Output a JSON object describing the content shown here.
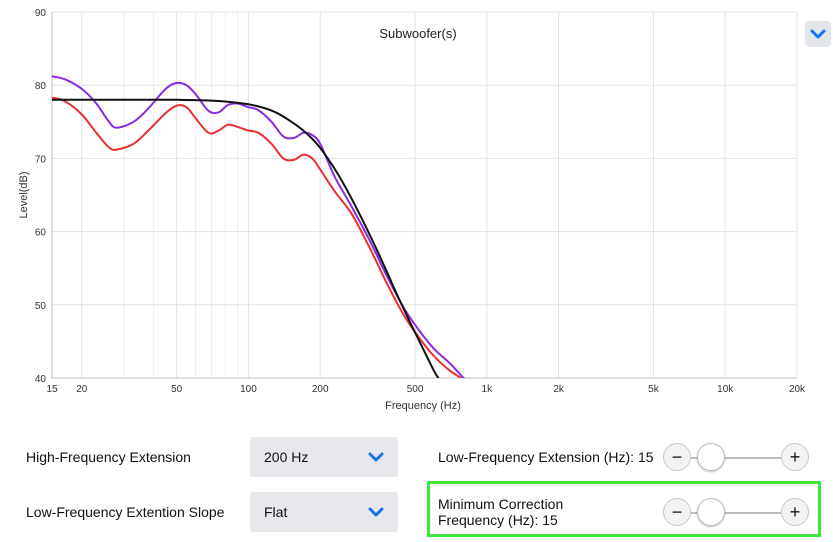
{
  "chart_data": {
    "type": "line",
    "title": "Subwoofer(s)",
    "xlabel": "Frequency (Hz)",
    "ylabel": "Level(dB)",
    "xscale": "log",
    "xlim": [
      15,
      20000
    ],
    "ylim": [
      40,
      90
    ],
    "grid": true,
    "x_ticks": [
      15,
      20,
      50,
      100,
      200,
      500,
      1000,
      2000,
      5000,
      10000,
      20000
    ],
    "x_tick_labels": [
      "15",
      "20",
      "50",
      "100",
      "200",
      "500",
      "1k",
      "2k",
      "5k",
      "10k",
      "20k"
    ],
    "y_ticks": [
      40,
      50,
      60,
      70,
      80,
      90
    ],
    "y_tick_labels": [
      "40",
      "50",
      "60",
      "70",
      "80",
      "90"
    ],
    "series": [
      {
        "color": "#8a2be2",
        "x": [
          15,
          17,
          20,
          23,
          26,
          28,
          33,
          38,
          45,
          50,
          55,
          60,
          68,
          75,
          82,
          90,
          100,
          110,
          125,
          140,
          155,
          170,
          185,
          200,
          230,
          270,
          320,
          380,
          450,
          520,
          600,
          700,
          800,
          850
        ],
        "y": [
          81.2,
          80.8,
          79.5,
          77.5,
          75.0,
          74.2,
          75.0,
          76.8,
          79.5,
          80.3,
          80.0,
          78.8,
          76.5,
          76.3,
          77.3,
          77.5,
          77.0,
          76.6,
          75.0,
          73.0,
          72.8,
          73.5,
          73.2,
          72.0,
          67.5,
          63.5,
          59.0,
          54.0,
          49.5,
          46.5,
          44.0,
          42.0,
          40.0,
          39.5
        ]
      },
      {
        "color": "#e8302e",
        "x": [
          15,
          17,
          20,
          23,
          26,
          28,
          33,
          38,
          45,
          50,
          55,
          60,
          68,
          75,
          82,
          90,
          100,
          110,
          125,
          140,
          155,
          170,
          185,
          200,
          230,
          270,
          320,
          380,
          450,
          520,
          600,
          700,
          780
        ],
        "y": [
          78.3,
          77.8,
          76.0,
          73.5,
          71.5,
          71.2,
          72.0,
          73.8,
          76.2,
          77.2,
          77.0,
          75.5,
          73.5,
          73.8,
          74.6,
          74.3,
          73.8,
          73.5,
          72.0,
          70.0,
          69.8,
          70.5,
          70.0,
          68.5,
          65.5,
          62.5,
          58.0,
          53.0,
          48.5,
          45.5,
          43.0,
          41.0,
          40.0
        ]
      },
      {
        "color": "#111111",
        "x": [
          15,
          20,
          30,
          50,
          70,
          90,
          110,
          130,
          150,
          170,
          190,
          210,
          240,
          280,
          320,
          370,
          420,
          480,
          540,
          600,
          640
        ],
        "y": [
          78.0,
          78.0,
          78.0,
          78.0,
          77.9,
          77.6,
          77.1,
          76.3,
          75.1,
          73.8,
          72.3,
          70.5,
          67.6,
          63.6,
          59.8,
          55.4,
          51.4,
          47.4,
          44.0,
          41.0,
          39.5
        ]
      }
    ]
  },
  "expand_button": {
    "icon": "chevron-down-icon"
  },
  "controls": {
    "hf_extension": {
      "label": "High-Frequency Extension",
      "value": "200 Hz"
    },
    "lf_slope": {
      "label": "Low-Frequency Extention Slope",
      "value": "Flat"
    },
    "lf_extension": {
      "label": "Low-Frequency Extension (Hz): 15",
      "minus": "−",
      "plus": "+",
      "level": 0.1
    },
    "min_correction": {
      "label_line1": "Minimum Correction",
      "label_line2": "Frequency (Hz): 15",
      "minus": "−",
      "plus": "+",
      "level": 0.1
    }
  },
  "colors": {
    "accent": "#1a73e8",
    "highlight": "#3ee83a"
  }
}
